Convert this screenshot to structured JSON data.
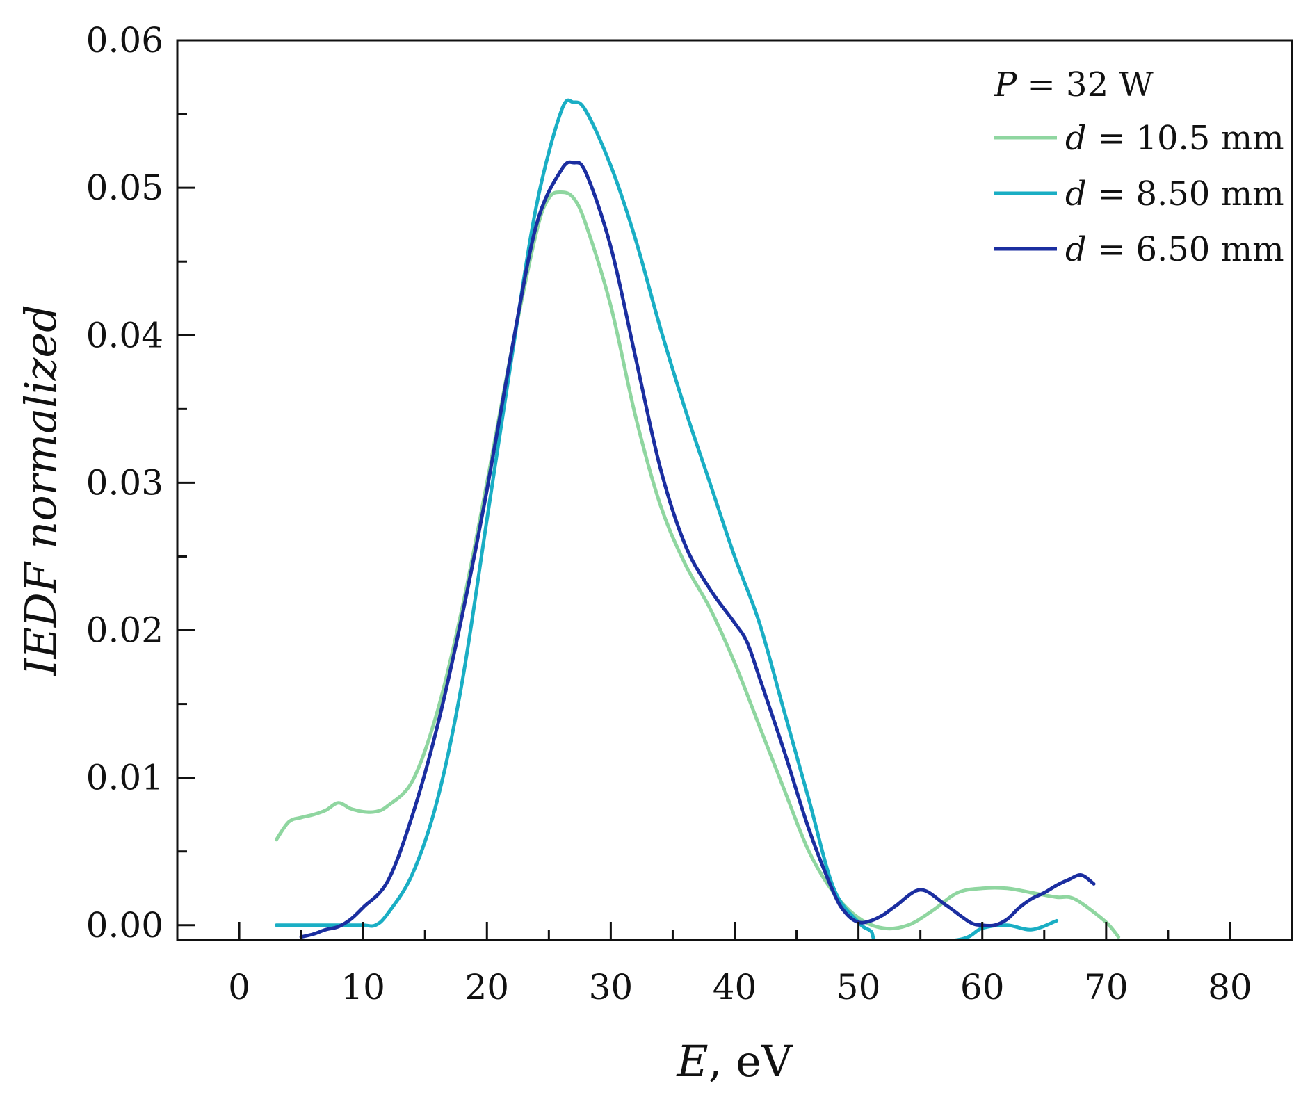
{
  "chart_data": {
    "type": "line",
    "title": "",
    "xlabel": {
      "var": "E",
      "rest": ", eV"
    },
    "ylabel": "IEDF normalized",
    "xlim": [
      -5,
      85
    ],
    "ylim": [
      -0.001,
      0.06
    ],
    "xticks": [
      0,
      10,
      20,
      30,
      40,
      50,
      60,
      70,
      80
    ],
    "xtick_labels": [
      "0",
      "10",
      "20",
      "30",
      "40",
      "50",
      "60",
      "70",
      "80"
    ],
    "yticks": [
      0.0,
      0.01,
      0.02,
      0.03,
      0.04,
      0.05,
      0.06
    ],
    "ytick_labels": [
      "0.00",
      "0.01",
      "0.02",
      "0.03",
      "0.04",
      "0.05",
      "0.06"
    ],
    "grid": false,
    "legend": {
      "placement": "top-right",
      "header": {
        "var": "P",
        "rest": " = 32 W"
      },
      "entries": [
        {
          "var": "d",
          "rest": " = 10.5 mm"
        },
        {
          "var": "d",
          "rest": " = 8.50 mm"
        },
        {
          "var": "d",
          "rest": " = 6.50 mm"
        }
      ]
    },
    "series": [
      {
        "name": "d = 10.5 mm",
        "color": "#8fd6a0",
        "x": [
          3,
          4,
          5,
          6,
          7,
          8,
          9,
          10,
          11,
          12,
          14,
          16,
          18,
          20,
          22,
          24,
          25,
          26,
          27,
          28,
          30,
          32,
          34,
          36,
          38,
          40,
          42,
          44,
          46,
          48,
          50,
          52,
          54,
          56,
          58,
          60,
          62,
          64,
          66,
          67,
          68,
          70,
          71
        ],
        "y": [
          0.0058,
          0.007,
          0.0073,
          0.0075,
          0.0078,
          0.0083,
          0.0079,
          0.0077,
          0.0077,
          0.0081,
          0.0098,
          0.0145,
          0.0215,
          0.03,
          0.039,
          0.047,
          0.0493,
          0.0497,
          0.0493,
          0.0475,
          0.042,
          0.0345,
          0.0285,
          0.0245,
          0.0215,
          0.0178,
          0.0135,
          0.0092,
          0.005,
          0.0022,
          0.0005,
          -0.0002,
          0.0,
          0.001,
          0.0022,
          0.0025,
          0.0025,
          0.0022,
          0.0019,
          0.0019,
          0.0015,
          0.0002,
          -0.0008
        ]
      },
      {
        "name": "d = 8.50 mm",
        "color": "#1aaec4",
        "x": [
          3,
          6,
          8,
          10,
          11,
          12,
          14,
          16,
          18,
          20,
          22,
          24,
          26,
          27,
          28,
          30,
          32,
          34,
          36,
          38,
          40,
          42,
          44,
          46,
          48,
          50,
          51,
          52,
          58,
          60,
          62,
          64,
          66
        ],
        "y": [
          0.0,
          0.0,
          0.0,
          0.0,
          0.0,
          0.0008,
          0.0035,
          0.0085,
          0.0165,
          0.0275,
          0.0385,
          0.0488,
          0.0552,
          0.0558,
          0.0552,
          0.0515,
          0.0465,
          0.0405,
          0.035,
          0.03,
          0.025,
          0.0205,
          0.0145,
          0.0085,
          0.0025,
          0.0002,
          -0.0004,
          -0.0012,
          -0.001,
          -0.0002,
          0.0,
          -0.0003,
          0.0003
        ]
      },
      {
        "name": "d = 6.50 mm",
        "color": "#1b2ea0",
        "x": [
          5,
          6,
          7,
          8,
          9,
          10,
          12,
          14,
          16,
          18,
          20,
          22,
          24,
          26,
          27,
          28,
          30,
          32,
          34,
          36,
          38,
          40,
          41,
          42,
          44,
          46,
          48,
          49,
          50,
          51,
          52,
          53,
          55,
          57,
          59,
          60,
          61,
          62,
          63,
          64,
          65,
          66,
          67,
          68,
          69
        ],
        "y": [
          -0.0008,
          -0.0006,
          -0.0003,
          -0.0001,
          0.0004,
          0.0012,
          0.003,
          0.0075,
          0.0135,
          0.021,
          0.0295,
          0.039,
          0.0475,
          0.0512,
          0.0517,
          0.051,
          0.046,
          0.0385,
          0.031,
          0.0258,
          0.0228,
          0.0205,
          0.0192,
          0.0168,
          0.0118,
          0.0065,
          0.0022,
          0.0008,
          0.0002,
          0.0003,
          0.0007,
          0.0013,
          0.0024,
          0.0014,
          0.0002,
          0.0,
          0.0,
          0.0004,
          0.0012,
          0.0018,
          0.0022,
          0.0027,
          0.0031,
          0.0034,
          0.0028
        ]
      }
    ]
  }
}
